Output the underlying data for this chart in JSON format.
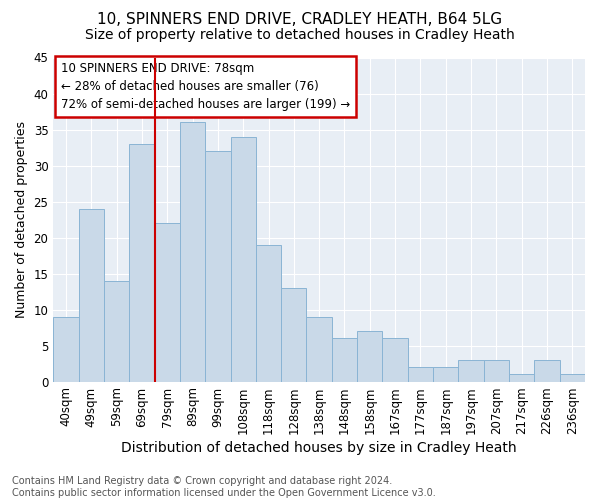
{
  "title1": "10, SPINNERS END DRIVE, CRADLEY HEATH, B64 5LG",
  "title2": "Size of property relative to detached houses in Cradley Heath",
  "xlabel": "Distribution of detached houses by size in Cradley Heath",
  "ylabel": "Number of detached properties",
  "footnote": "Contains HM Land Registry data © Crown copyright and database right 2024.\nContains public sector information licensed under the Open Government Licence v3.0.",
  "categories": [
    "40sqm",
    "49sqm",
    "59sqm",
    "69sqm",
    "79sqm",
    "89sqm",
    "99sqm",
    "108sqm",
    "118sqm",
    "128sqm",
    "138sqm",
    "148sqm",
    "158sqm",
    "167sqm",
    "177sqm",
    "187sqm",
    "197sqm",
    "207sqm",
    "217sqm",
    "226sqm",
    "236sqm"
  ],
  "values": [
    9,
    24,
    14,
    33,
    22,
    36,
    32,
    34,
    19,
    13,
    9,
    6,
    7,
    6,
    2,
    2,
    3,
    3,
    1,
    3,
    1
  ],
  "bar_color": "#c9d9e8",
  "bar_edge_color": "#8ab4d4",
  "red_line_index": 4,
  "annotation_text": "10 SPINNERS END DRIVE: 78sqm\n← 28% of detached houses are smaller (76)\n72% of semi-detached houses are larger (199) →",
  "annotation_box_color": "#ffffff",
  "annotation_box_edge": "#cc0000",
  "ylim": [
    0,
    45
  ],
  "yticks": [
    0,
    5,
    10,
    15,
    20,
    25,
    30,
    35,
    40,
    45
  ],
  "bg_color": "#ffffff",
  "plot_bg_color": "#e8eef5",
  "grid_color": "#ffffff",
  "title1_fontsize": 11,
  "title2_fontsize": 10,
  "xlabel_fontsize": 10,
  "ylabel_fontsize": 9,
  "tick_fontsize": 8.5,
  "footnote_fontsize": 7
}
